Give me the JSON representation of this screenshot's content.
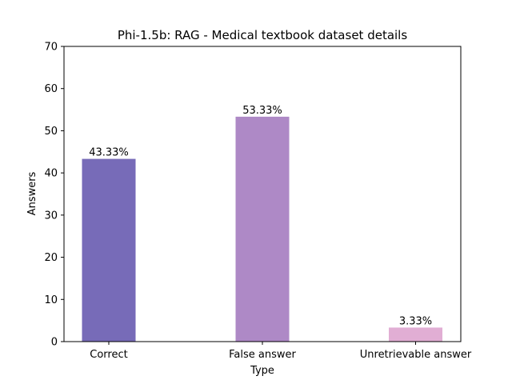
{
  "chart_data": {
    "type": "bar",
    "title": "Phi-1.5b: RAG - Medical textbook dataset details",
    "xlabel": "Type",
    "ylabel": "Answers",
    "categories": [
      "Correct",
      "False answer",
      "Unretrievable answer"
    ],
    "values": [
      43.33,
      53.33,
      3.33
    ],
    "data_labels": [
      "43.33%",
      "53.33%",
      "3.33%"
    ],
    "colors": [
      "#776bb8",
      "#ae89c6",
      "#e1aed4"
    ],
    "ylim": [
      0,
      70
    ],
    "yticks": [
      0,
      10,
      20,
      30,
      40,
      50,
      60,
      70
    ],
    "grid": false,
    "legend": "none"
  }
}
